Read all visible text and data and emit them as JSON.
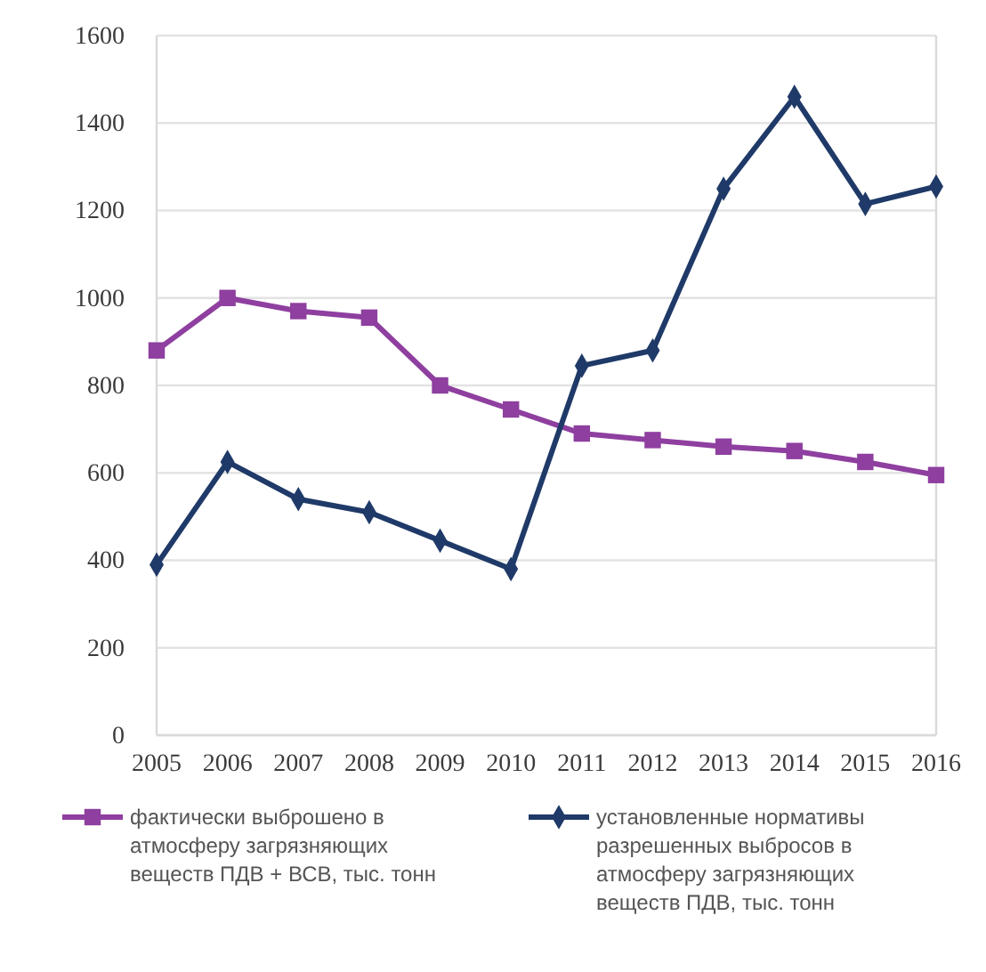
{
  "chart_data": {
    "type": "line",
    "categories": [
      "2005",
      "2006",
      "2007",
      "2008",
      "2009",
      "2010",
      "2011",
      "2012",
      "2013",
      "2014",
      "2015",
      "2016"
    ],
    "series": [
      {
        "name": "фактически выброшено в атмосферу загрязняющих веществ ПДВ + ВСВ, тыс. тонн",
        "color": "#8e3f9f",
        "marker": "square",
        "values": [
          880,
          1000,
          970,
          955,
          800,
          745,
          690,
          675,
          660,
          650,
          625,
          595
        ]
      },
      {
        "name": "установленные нормативы разрешенных выбросов в атмосферу загрязняющих веществ ПДВ, тыс. тонн",
        "color": "#1f3a68",
        "marker": "diamond",
        "values": [
          390,
          625,
          540,
          510,
          445,
          380,
          845,
          880,
          1250,
          1460,
          1215,
          1255
        ]
      }
    ],
    "ylim": [
      0,
      1600
    ],
    "yticks": [
      0,
      200,
      400,
      600,
      800,
      1000,
      1200,
      1400,
      1600
    ],
    "grid": "y",
    "legend": "bottom"
  }
}
